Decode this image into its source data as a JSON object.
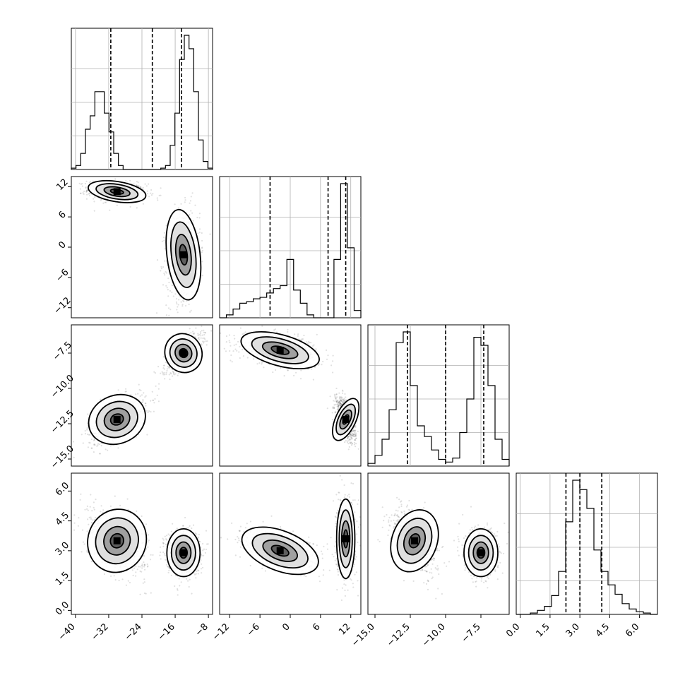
{
  "chart_data": {
    "type": "corner",
    "grid": true,
    "params": [
      {
        "index": 0,
        "range": [
          -41,
          -7
        ],
        "ticks": [
          -40,
          -32,
          -24,
          -16,
          -8
        ],
        "tick_labels": [
          "−40",
          "−32",
          "−24",
          "−16",
          "−8"
        ],
        "quantiles": [
          -31.5,
          -21.5,
          -14.5
        ]
      },
      {
        "index": 1,
        "range": [
          -14,
          14
        ],
        "ticks": [
          -12,
          -6,
          0,
          6,
          12
        ],
        "tick_labels": [
          "−12",
          "−6",
          "0",
          "6",
          "12"
        ],
        "quantiles": [
          -4.0,
          7.5,
          11.0
        ]
      },
      {
        "index": 2,
        "range": [
          -15.5,
          -5.5
        ],
        "ticks": [
          -15.0,
          -12.5,
          -10.0,
          -7.5
        ],
        "tick_labels": [
          "−15.0",
          "−12.5",
          "−10.0",
          "−7.5"
        ],
        "quantiles": [
          -12.7,
          -10.0,
          -7.3
        ]
      },
      {
        "index": 3,
        "range": [
          -0.2,
          6.9
        ],
        "ticks": [
          0.0,
          1.5,
          3.0,
          4.5,
          6.0
        ],
        "tick_labels": [
          "0.0",
          "1.5",
          "3.0",
          "4.5",
          "6.0"
        ],
        "quantiles": [
          2.3,
          3.0,
          4.1
        ]
      }
    ],
    "histograms": [
      {
        "param": 0,
        "counts": [
          1,
          3,
          12,
          30,
          40,
          58,
          58,
          42,
          28,
          12,
          3,
          0,
          0,
          0,
          0,
          0,
          0,
          0,
          0,
          1,
          3,
          18,
          42,
          82,
          100,
          90,
          58,
          22,
          6,
          1
        ]
      },
      {
        "param": 1,
        "counts": [
          0,
          2,
          6,
          10,
          11,
          13,
          14,
          17,
          20,
          22,
          40,
          19,
          10,
          2,
          0,
          0,
          0,
          40,
          92,
          48,
          5
        ]
      },
      {
        "param": 2,
        "counts": [
          2,
          8,
          20,
          42,
          92,
          100,
          60,
          30,
          22,
          12,
          5,
          3,
          6,
          25,
          50,
          96,
          90,
          60,
          20,
          5
        ]
      },
      {
        "param": 3,
        "counts": [
          0,
          0,
          1,
          3,
          6,
          14,
          32,
          69,
          100,
          93,
          79,
          48,
          32,
          22,
          15,
          8,
          4,
          2,
          1,
          0
        ]
      }
    ],
    "modes": [
      {
        "param": 0,
        "mu": -30,
        "sd": 3.5,
        "w": 0.5
      },
      {
        "param": 0,
        "mu": -14,
        "sd": 2.2,
        "w": 0.5
      },
      {
        "param": 1,
        "mu": 11.2,
        "sd": 1.0,
        "w": 0.5
      },
      {
        "param": 1,
        "mu": 0.5,
        "sd": 3.5,
        "w": 0.5
      },
      {
        "param": 2,
        "mu": -12.2,
        "sd": 0.8,
        "w": 0.5
      },
      {
        "param": 2,
        "mu": -7.5,
        "sd": 0.6,
        "w": 0.5
      },
      {
        "param": 3,
        "mu": 3.4,
        "sd": 0.8,
        "w": 0.5
      },
      {
        "param": 3,
        "mu": 2.9,
        "sd": 0.6,
        "w": 0.5
      }
    ],
    "blobs": [
      {
        "pair": [
          1,
          0
        ],
        "parts": [
          {
            "cx": -30,
            "cy": 11,
            "sx": 3.5,
            "sy": 1.0,
            "rho": -0.2,
            "w": 0.5
          },
          {
            "cx": -14,
            "cy": -1.5,
            "sx": 2.0,
            "sy": 4.5,
            "rho": 0.15,
            "w": 0.5
          }
        ]
      },
      {
        "pair": [
          2,
          0
        ],
        "parts": [
          {
            "cx": -30,
            "cy": -12.2,
            "sx": 3.5,
            "sy": 0.85,
            "rho": 0.55,
            "w": 0.5
          },
          {
            "cx": -14,
            "cy": -7.5,
            "sx": 2.2,
            "sy": 0.7,
            "rho": 0.7,
            "w": 0.5
          }
        ]
      },
      {
        "pair": [
          2,
          1
        ],
        "parts": [
          {
            "cx": -2,
            "cy": -7.3,
            "sx": 4.0,
            "sy": 0.55,
            "rho": -0.35,
            "w": 0.5
          },
          {
            "cx": 11,
            "cy": -12.2,
            "sx": 1.0,
            "sy": 0.8,
            "rho": -0.6,
            "w": 0.5
          }
        ]
      },
      {
        "pair": [
          3,
          0
        ],
        "parts": [
          {
            "cx": -30,
            "cy": 3.5,
            "sx": 3.5,
            "sy": 0.8,
            "rho": -0.45,
            "w": 0.5
          },
          {
            "cx": -14,
            "cy": 2.9,
            "sx": 2.0,
            "sy": 0.6,
            "rho": 0.0,
            "w": 0.5
          }
        ]
      },
      {
        "pair": [
          3,
          1
        ],
        "parts": [
          {
            "cx": -2,
            "cy": 3.0,
            "sx": 4.0,
            "sy": 0.5,
            "rho": -0.5,
            "w": 0.5
          },
          {
            "cx": 11,
            "cy": 3.6,
            "sx": 0.9,
            "sy": 1.0,
            "rho": 0.0,
            "w": 0.5
          }
        ]
      },
      {
        "pair": [
          3,
          2
        ],
        "parts": [
          {
            "cx": -12.2,
            "cy": 3.5,
            "sx": 0.8,
            "sy": 0.8,
            "rho": -0.45,
            "w": 0.5
          },
          {
            "cx": -7.5,
            "cy": 2.9,
            "sx": 0.6,
            "sy": 0.6,
            "rho": 0.0,
            "w": 0.5
          }
        ]
      }
    ]
  }
}
